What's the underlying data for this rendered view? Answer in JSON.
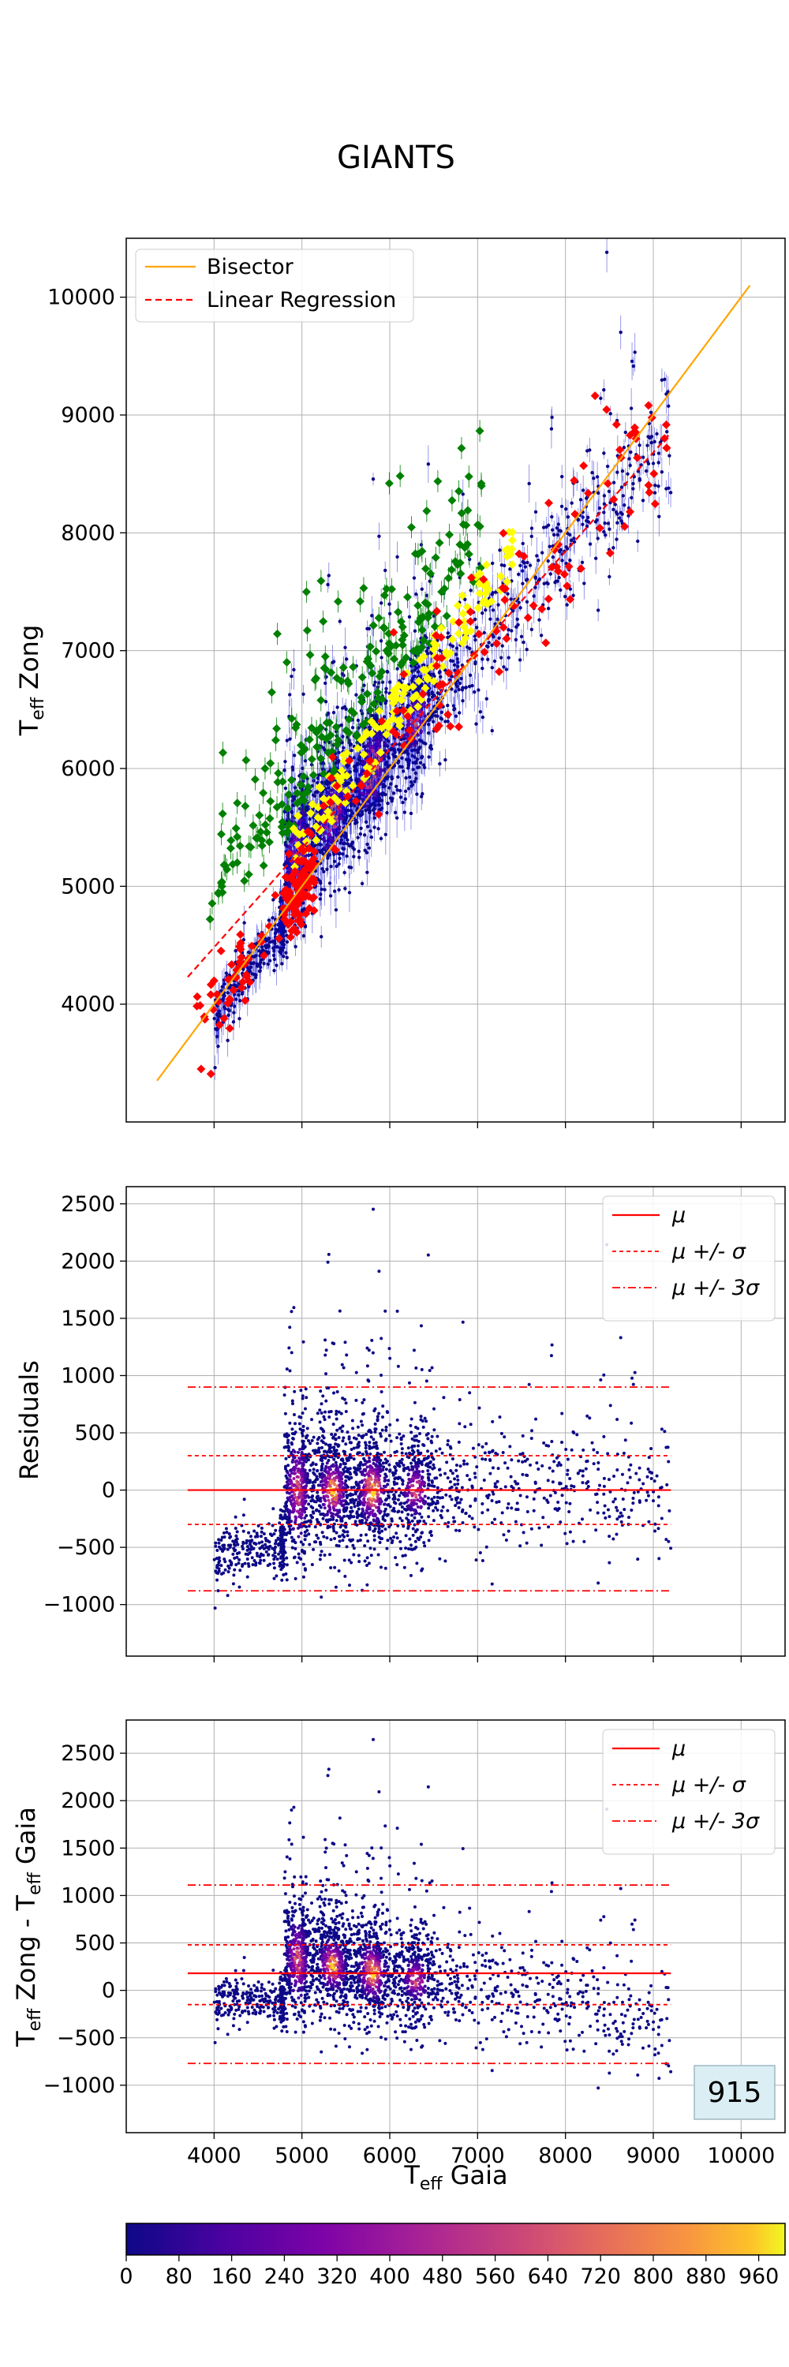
{
  "figure": {
    "title": "GIANTS",
    "badge": "915"
  },
  "colors": {
    "bisector": "#ffa500",
    "regression": "#ff0000",
    "green_points": "#008000",
    "yellow_points": "#ffff00",
    "red_points": "#ff0000",
    "errorbar": "#0000cd",
    "grid": "#b0b0b0",
    "badge_fill": "#dbeef4"
  },
  "chart_data": [
    {
      "panel": "top",
      "type": "scatter",
      "ylabel": "T_eff Zong",
      "xlim": [
        3000,
        10500
      ],
      "ylim": [
        3000,
        10500
      ],
      "xticks": [
        4000,
        5000,
        6000,
        7000,
        8000,
        9000,
        10000
      ],
      "yticks": [
        4000,
        5000,
        6000,
        7000,
        8000,
        9000,
        10000
      ],
      "grid": true,
      "legend_position": "top-left",
      "series": [
        {
          "name": "Bisector",
          "type": "line",
          "style": "solid",
          "x": [
            3350,
            10100
          ],
          "y": [
            3350,
            10100
          ]
        },
        {
          "name": "Linear Regression",
          "type": "line",
          "style": "dashed",
          "x": [
            3700,
            9200
          ],
          "y": [
            4230,
            8850
          ]
        }
      ],
      "density_description": "dense blue error-bar cloud with green/yellow/red flagged points"
    },
    {
      "panel": "middle",
      "type": "scatter",
      "ylabel": "Residuals",
      "xlim": [
        3000,
        10500
      ],
      "ylim": [
        -1450,
        2650
      ],
      "yticks": [
        -1000,
        -500,
        0,
        500,
        1000,
        1500,
        2000,
        2500
      ],
      "grid": true,
      "legend_position": "top-right",
      "lines": [
        {
          "name": "μ",
          "style": "solid",
          "y": 0
        },
        {
          "name": "μ +/- σ",
          "style": "dashed",
          "y": [
            -300,
            300
          ]
        },
        {
          "name": "μ +/- 3σ",
          "style": "dashdot",
          "y": [
            -880,
            900
          ]
        }
      ],
      "x_range_lines": [
        3700,
        9200
      ]
    },
    {
      "panel": "bottom",
      "type": "scatter",
      "xlabel": "T_eff Gaia",
      "ylabel": "T_eff Zong - T_eff Gaia",
      "xlim": [
        3000,
        10500
      ],
      "ylim": [
        -1500,
        2850
      ],
      "xticks": [
        4000,
        5000,
        6000,
        7000,
        8000,
        9000,
        10000
      ],
      "yticks": [
        -1000,
        -500,
        0,
        500,
        1000,
        1500,
        2000,
        2500
      ],
      "grid": true,
      "legend_position": "top-right",
      "lines": [
        {
          "name": "μ",
          "style": "solid",
          "y": 180
        },
        {
          "name": "μ +/- σ",
          "style": "dashed",
          "y": [
            -150,
            480
          ]
        },
        {
          "name": "μ +/- 3σ",
          "style": "dashdot",
          "y": [
            -770,
            1110
          ]
        }
      ],
      "x_range_lines": [
        3700,
        9200
      ]
    },
    {
      "panel": "colorbar",
      "type": "heatmap",
      "range": [
        0,
        1000
      ],
      "ticks": [
        0,
        80,
        160,
        240,
        320,
        400,
        480,
        560,
        640,
        720,
        800,
        880,
        960
      ],
      "colormap": "plasma"
    }
  ],
  "legend_labels": {
    "top": [
      "Bisector",
      "Linear Regression"
    ],
    "middle": [
      "μ",
      "μ +/- σ",
      "μ +/- 3σ"
    ],
    "bottom": [
      "μ",
      "μ +/- σ",
      "μ +/- 3σ"
    ]
  }
}
